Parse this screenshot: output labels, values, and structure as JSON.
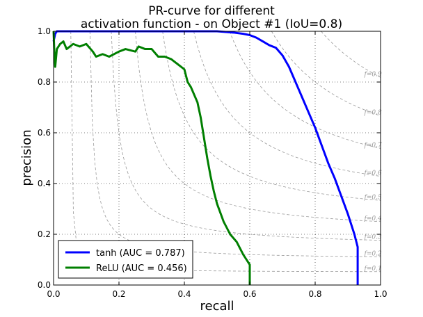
{
  "chart_data": {
    "type": "line",
    "title_line1": "PR-curve for different",
    "title_line2": "activation function - on Object #1 (IoU=0.8)",
    "xlabel": "recall",
    "ylabel": "precision",
    "xlim": [
      0.0,
      1.0
    ],
    "ylim": [
      0.0,
      1.0
    ],
    "x_ticks": [
      "0.0",
      "0.2",
      "0.4",
      "0.6",
      "0.8",
      "1.0"
    ],
    "y_ticks": [
      "0.0",
      "0.2",
      "0.4",
      "0.6",
      "0.8",
      "1.0"
    ],
    "grid": true,
    "legend_position": "lower-left",
    "iso_f1": {
      "values": [
        0.1,
        0.2,
        0.3,
        0.4,
        0.5,
        0.6,
        0.7,
        0.8,
        0.9
      ],
      "labels": [
        "f=0.1",
        "f=0.2",
        "f=0.3",
        "f=0.4",
        "f=0.5",
        "f=0.6",
        "f=0.7",
        "f=0.8",
        "f=0.9"
      ],
      "color": "#999999"
    },
    "series": [
      {
        "name": "tanh (AUC = 0.787)",
        "color": "#0000ff",
        "x": [
          0.0,
          0.005,
          0.01,
          0.02,
          0.05,
          0.1,
          0.2,
          0.3,
          0.4,
          0.5,
          0.55,
          0.58,
          0.6,
          0.62,
          0.64,
          0.66,
          0.68,
          0.7,
          0.72,
          0.74,
          0.76,
          0.78,
          0.8,
          0.82,
          0.84,
          0.86,
          0.88,
          0.9,
          0.92,
          0.93,
          0.93
        ],
        "y": [
          0.96,
          0.99,
          1.0,
          1.0,
          1.0,
          1.0,
          1.0,
          1.0,
          1.0,
          1.0,
          0.995,
          0.99,
          0.985,
          0.975,
          0.96,
          0.945,
          0.935,
          0.905,
          0.86,
          0.8,
          0.74,
          0.68,
          0.62,
          0.55,
          0.48,
          0.42,
          0.35,
          0.28,
          0.2,
          0.15,
          0.0
        ]
      },
      {
        "name": "ReLU (AUC = 0.456)",
        "color": "#007f00",
        "x": [
          0.0,
          0.002,
          0.005,
          0.01,
          0.02,
          0.03,
          0.04,
          0.06,
          0.08,
          0.1,
          0.12,
          0.13,
          0.15,
          0.17,
          0.2,
          0.22,
          0.25,
          0.26,
          0.28,
          0.3,
          0.32,
          0.34,
          0.36,
          0.38,
          0.4,
          0.41,
          0.42,
          0.44,
          0.45,
          0.46,
          0.47,
          0.48,
          0.49,
          0.5,
          0.52,
          0.54,
          0.56,
          0.58,
          0.59,
          0.6,
          0.6
        ],
        "y": [
          1.0,
          0.93,
          0.86,
          0.93,
          0.95,
          0.96,
          0.93,
          0.95,
          0.94,
          0.95,
          0.92,
          0.9,
          0.91,
          0.9,
          0.92,
          0.93,
          0.92,
          0.94,
          0.93,
          0.93,
          0.9,
          0.9,
          0.89,
          0.87,
          0.85,
          0.8,
          0.78,
          0.72,
          0.66,
          0.58,
          0.5,
          0.43,
          0.37,
          0.32,
          0.25,
          0.2,
          0.17,
          0.12,
          0.1,
          0.08,
          0.0
        ]
      }
    ]
  }
}
